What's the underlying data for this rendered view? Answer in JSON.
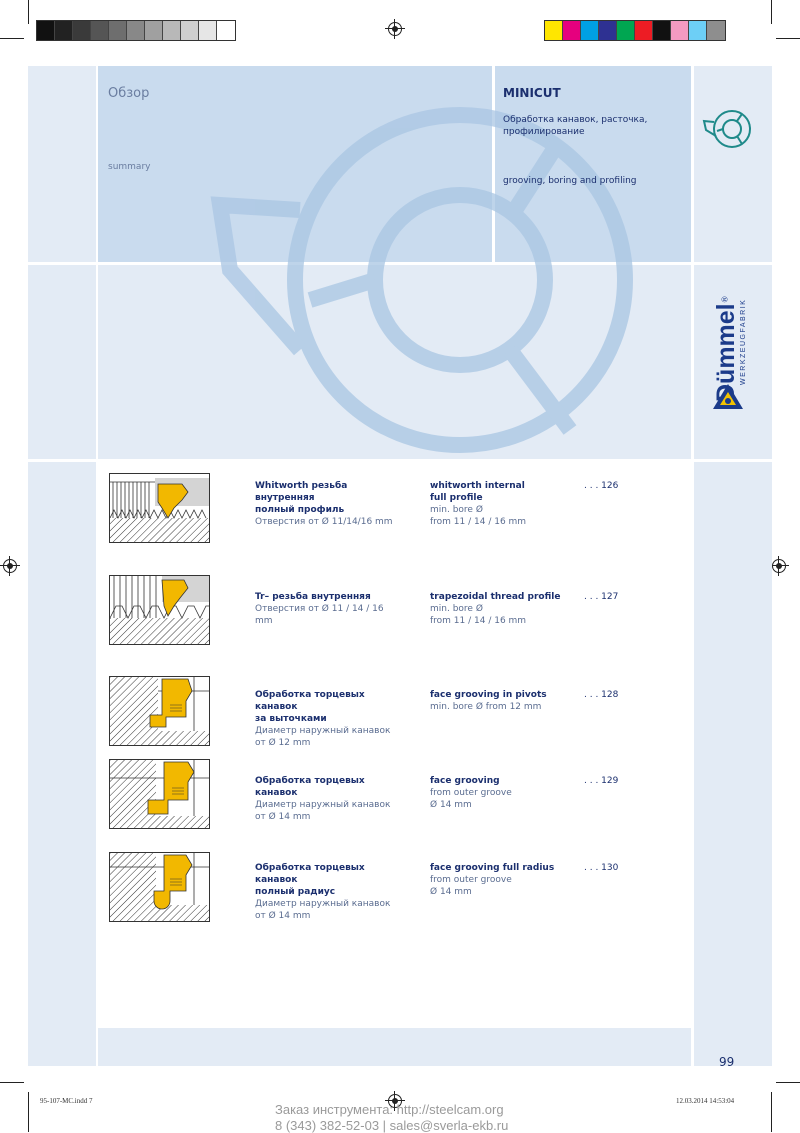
{
  "colorbars": {
    "left": [
      "#111111",
      "#222222",
      "#3a3a3a",
      "#555555",
      "#6e6e6e",
      "#888888",
      "#a0a0a0",
      "#b8b8b8",
      "#cfcfcf",
      "#e6e6e6",
      "#ffffff"
    ],
    "right": [
      "#ffe600",
      "#e6007e",
      "#00a0e3",
      "#2e3192",
      "#00a651",
      "#ed1c24",
      "#111111",
      "#f49ac1",
      "#6dcff6",
      "#8e8e8e"
    ]
  },
  "header": {
    "title_ru": "Обзор",
    "title_en": "summary",
    "brand": "MINICUT",
    "desc_ru": "Обработка канавок, расточка, профилирование",
    "desc_en": "grooving, boring and profiling"
  },
  "logo": {
    "name": "Dümmel",
    "sub": "WERKZEUGFABRIK",
    "reg": "®"
  },
  "entries": [
    {
      "ru_bold": [
        "Whitworth резьба",
        "внутренняя",
        "полный профиль"
      ],
      "ru_norm": [
        "Отверстия от Ø 11/14/16 mm"
      ],
      "en_bold": [
        "whitworth internal",
        "full profile"
      ],
      "en_norm": [
        "min. bore Ø",
        "from 11 / 14 / 16 mm"
      ],
      "page": ". . . 126"
    },
    {
      "ru_bold": [
        "Tr– резьба внутренняя"
      ],
      "ru_norm": [
        "Отверстия от Ø 11 / 14 / 16",
        "mm"
      ],
      "en_bold": [
        "trapezoidal thread profile"
      ],
      "en_norm": [
        "min. bore Ø",
        "from 11 / 14 / 16 mm"
      ],
      "page": ". . . 127"
    },
    {
      "ru_bold": [
        "Обработка торцевых канавок",
        "за выточками"
      ],
      "ru_norm": [
        "Диаметр наружный канавок",
        "от Ø 12 mm"
      ],
      "en_bold": [
        "face grooving in pivots"
      ],
      "en_norm": [
        "min. bore Ø from 12 mm"
      ],
      "page": ". . . 128"
    },
    {
      "ru_bold": [
        "Обработка торцевых канавок"
      ],
      "ru_norm": [
        "Диаметр наружный канавок",
        "от Ø 14 mm"
      ],
      "en_bold": [
        "face grooving"
      ],
      "en_norm": [
        "from outer groove",
        "Ø 14 mm"
      ],
      "page": ". . . 129"
    },
    {
      "ru_bold": [
        "Обработка торцевых канавок",
        "полный радиус"
      ],
      "ru_norm": [
        "Диаметр наружный канавок",
        "от  Ø 14 mm"
      ],
      "en_bold": [
        "face grooving full radius"
      ],
      "en_norm": [
        "from outer groove",
        "Ø 14 mm"
      ],
      "page": ". . . 130"
    }
  ],
  "page_number": "99",
  "slug": {
    "left": "95-107-MC.indd   7",
    "right": "12.03.2014   14:53:04"
  },
  "footer": {
    "line1": "Заказ инструмента: http://steelcam.org",
    "line2": "8 (343) 382-52-03  |  sales@sverla-ekb.ru"
  }
}
